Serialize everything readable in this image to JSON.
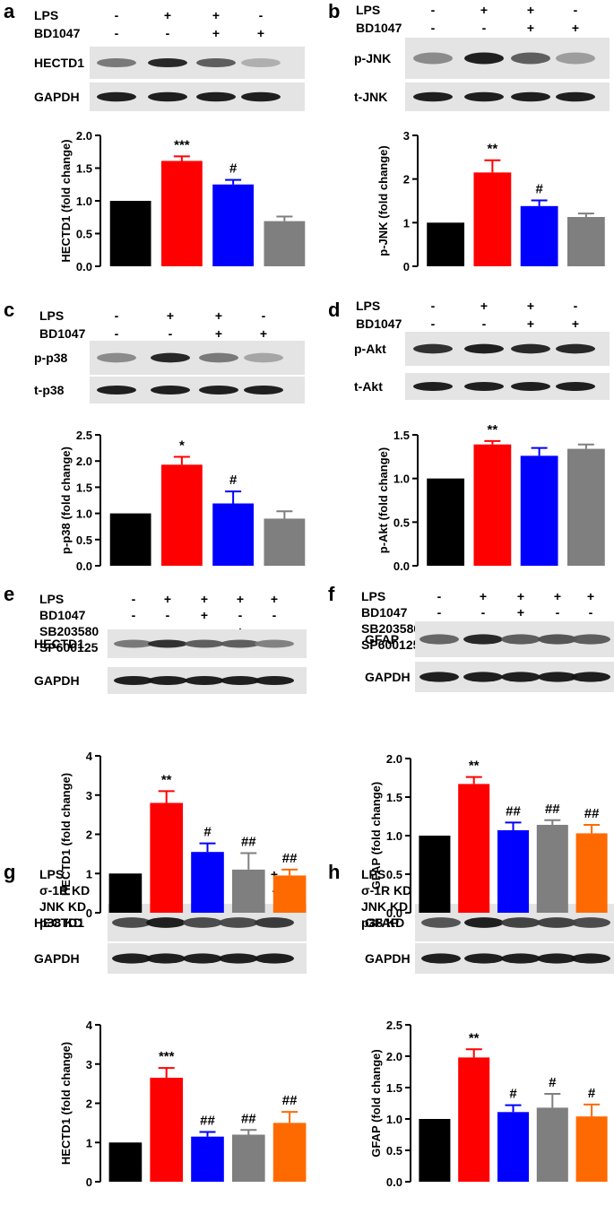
{
  "colors": {
    "black": "#000000",
    "red": "#ff0000",
    "blue": "#0000ff",
    "gray": "#7f7f7f",
    "orange": "#ff6a00"
  },
  "panels": [
    {
      "label": "a",
      "conditions": [
        {
          "name": "LPS",
          "signs": [
            "-",
            "+",
            "+",
            "-"
          ]
        },
        {
          "name": "BD1047",
          "signs": [
            "-",
            "-",
            "+",
            "+"
          ]
        }
      ],
      "blots": [
        {
          "label": "HECTD1",
          "intensities": [
            0.45,
            0.9,
            0.6,
            0.15
          ]
        },
        {
          "label": "GAPDH",
          "intensities": [
            0.95,
            0.95,
            0.95,
            0.95
          ]
        }
      ]
    },
    {
      "label": "b",
      "conditions": [
        {
          "name": "LPS",
          "signs": [
            "-",
            "+",
            "+",
            "-"
          ]
        },
        {
          "name": "BD1047",
          "signs": [
            "-",
            "-",
            "+",
            "+"
          ]
        }
      ],
      "blots": [
        {
          "label": "p-JNK",
          "intensities": [
            0.35,
            0.95,
            0.6,
            0.25
          ]
        },
        {
          "label": "t-JNK",
          "intensities": [
            0.95,
            0.95,
            0.95,
            0.95
          ]
        }
      ]
    },
    {
      "label": "c",
      "conditions": [
        {
          "name": "LPS",
          "signs": [
            "-",
            "+",
            "+",
            "-"
          ]
        },
        {
          "name": "BD1047",
          "signs": [
            "-",
            "-",
            "+",
            "+"
          ]
        }
      ],
      "blots": [
        {
          "label": "p-p38",
          "intensities": [
            0.35,
            0.9,
            0.45,
            0.2
          ]
        },
        {
          "label": "t-p38",
          "intensities": [
            0.95,
            0.95,
            0.95,
            0.95
          ]
        }
      ]
    },
    {
      "label": "d",
      "conditions": [
        {
          "name": "LPS",
          "signs": [
            "-",
            "+",
            "+",
            "-"
          ]
        },
        {
          "name": "BD1047",
          "signs": [
            "-",
            "-",
            "+",
            "+"
          ]
        }
      ],
      "blots": [
        {
          "label": "p-Akt",
          "intensities": [
            0.85,
            0.95,
            0.9,
            0.9
          ]
        },
        {
          "label": "t-Akt",
          "intensities": [
            0.95,
            0.95,
            0.95,
            0.95
          ]
        }
      ]
    },
    {
      "label": "e",
      "conditions": [
        {
          "name": "LPS",
          "signs": [
            "-",
            "+",
            "+",
            "+",
            "+"
          ]
        },
        {
          "name": "BD1047",
          "signs": [
            "-",
            "-",
            "+",
            "-",
            "-"
          ]
        },
        {
          "name": "SB203580",
          "signs": [
            "-",
            "-",
            "-",
            "+",
            "-"
          ]
        },
        {
          "name": "SP600125",
          "signs": [
            "-",
            "-",
            "-",
            "-",
            "+"
          ]
        }
      ],
      "blots": [
        {
          "label": "HECTD1",
          "intensities": [
            0.45,
            0.85,
            0.6,
            0.6,
            0.4
          ]
        },
        {
          "label": "GAPDH",
          "intensities": [
            0.95,
            0.95,
            0.95,
            0.95,
            0.95
          ]
        }
      ]
    },
    {
      "label": "f",
      "conditions": [
        {
          "name": "LPS",
          "signs": [
            "-",
            "+",
            "+",
            "+",
            "+"
          ]
        },
        {
          "name": "BD1047",
          "signs": [
            "-",
            "-",
            "+",
            "-",
            "-"
          ]
        },
        {
          "name": "SB203580",
          "signs": [
            "-",
            "-",
            "-",
            "+",
            "-"
          ]
        },
        {
          "name": "SP600125",
          "signs": [
            "-",
            "-",
            "-",
            "-",
            "+"
          ]
        }
      ],
      "blots": [
        {
          "label": "GFAP",
          "intensities": [
            0.55,
            0.9,
            0.6,
            0.65,
            0.6
          ]
        },
        {
          "label": "GAPDH",
          "intensities": [
            0.95,
            0.95,
            0.95,
            0.95,
            0.95
          ]
        }
      ]
    },
    {
      "label": "g",
      "conditions": [
        {
          "name": "LPS",
          "signs": [
            "-",
            "+",
            "+",
            "+",
            "+"
          ]
        },
        {
          "name": "σ-1R KD",
          "signs": [
            "-",
            "-",
            "+",
            "-",
            "-"
          ]
        },
        {
          "name": "JNK KD",
          "signs": [
            "-",
            "-",
            "-",
            "+",
            "-"
          ]
        },
        {
          "name": "p38 KD",
          "signs": [
            "-",
            "-",
            "-",
            "-",
            "+"
          ]
        }
      ],
      "blots": [
        {
          "label": "HECTD1",
          "intensities": [
            0.7,
            0.95,
            0.7,
            0.7,
            0.8
          ]
        },
        {
          "label": "GAPDH",
          "intensities": [
            0.95,
            0.95,
            0.95,
            0.95,
            0.95
          ]
        }
      ]
    },
    {
      "label": "h",
      "conditions": [
        {
          "name": "LPS",
          "signs": [
            "-",
            "+",
            "+",
            "+",
            "+"
          ]
        },
        {
          "name": "σ-1R KD",
          "signs": [
            "-",
            "-",
            "+",
            "-",
            "-"
          ]
        },
        {
          "name": "JNK KD",
          "signs": [
            "-",
            "-",
            "-",
            "+",
            "-"
          ]
        },
        {
          "name": "p38 KD",
          "signs": [
            "-",
            "-",
            "-",
            "-",
            "+"
          ]
        }
      ],
      "blots": [
        {
          "label": "GFAP",
          "intensities": [
            0.65,
            0.95,
            0.75,
            0.75,
            0.7
          ]
        },
        {
          "label": "GAPDH",
          "intensities": [
            0.95,
            0.95,
            0.95,
            0.95,
            0.95
          ]
        }
      ]
    }
  ],
  "chart_data": [
    {
      "panel": "a",
      "type": "bar",
      "ylabel": "HECTD1 (fold change)",
      "ylim": [
        0,
        2.0
      ],
      "yticks": [
        "0.0",
        "0.5",
        "1.0",
        "1.5",
        "2.0"
      ],
      "tick_values": [
        0,
        0.5,
        1.0,
        1.5,
        2.0
      ],
      "values": [
        1.0,
        1.61,
        1.25,
        0.69
      ],
      "errors": [
        0,
        0.07,
        0.07,
        0.07
      ],
      "significance": [
        "",
        "***",
        "#",
        ""
      ],
      "bar_colors": [
        "black",
        "red",
        "blue",
        "gray"
      ]
    },
    {
      "panel": "b",
      "type": "bar",
      "ylabel": "p-JNK (fold change)",
      "ylim": [
        0,
        3
      ],
      "yticks": [
        "0",
        "1",
        "2",
        "3"
      ],
      "tick_values": [
        0,
        1,
        2,
        3
      ],
      "values": [
        1.0,
        2.15,
        1.38,
        1.13
      ],
      "errors": [
        0,
        0.28,
        0.13,
        0.08
      ],
      "significance": [
        "",
        "**",
        "#",
        ""
      ],
      "bar_colors": [
        "black",
        "red",
        "blue",
        "gray"
      ]
    },
    {
      "panel": "c",
      "type": "bar",
      "ylabel": "p-p38 (fold change)",
      "ylim": [
        0,
        2.5
      ],
      "yticks": [
        "0.0",
        "0.5",
        "1.0",
        "1.5",
        "2.0",
        "2.5"
      ],
      "tick_values": [
        0,
        0.5,
        1.0,
        1.5,
        2.0,
        2.5
      ],
      "values": [
        1.0,
        1.93,
        1.19,
        0.9
      ],
      "errors": [
        0,
        0.15,
        0.23,
        0.14
      ],
      "significance": [
        "",
        "*",
        "#",
        ""
      ],
      "bar_colors": [
        "black",
        "red",
        "blue",
        "gray"
      ]
    },
    {
      "panel": "d",
      "type": "bar",
      "ylabel": "p-Akt (fold change)",
      "ylim": [
        0,
        1.5
      ],
      "yticks": [
        "0.0",
        "0.5",
        "1.0",
        "1.5"
      ],
      "tick_values": [
        0,
        0.5,
        1.0,
        1.5
      ],
      "values": [
        1.0,
        1.39,
        1.26,
        1.34
      ],
      "errors": [
        0,
        0.04,
        0.09,
        0.05
      ],
      "significance": [
        "",
        "**",
        "",
        ""
      ],
      "bar_colors": [
        "black",
        "red",
        "blue",
        "gray"
      ]
    },
    {
      "panel": "e",
      "type": "bar",
      "ylabel": "HECTD1 (fold change)",
      "ylim": [
        0,
        4
      ],
      "yticks": [
        "0",
        "1",
        "2",
        "3",
        "4"
      ],
      "tick_values": [
        0,
        1,
        2,
        3,
        4
      ],
      "values": [
        1.0,
        2.8,
        1.55,
        1.1,
        0.95
      ],
      "errors": [
        0,
        0.3,
        0.22,
        0.42,
        0.15
      ],
      "significance": [
        "",
        "**",
        "#",
        "##",
        "##"
      ],
      "bar_colors": [
        "black",
        "red",
        "blue",
        "gray",
        "orange"
      ]
    },
    {
      "panel": "f",
      "type": "bar",
      "ylabel": "GFAP (fold change)",
      "ylim": [
        0,
        2.0
      ],
      "yticks": [
        "0.0",
        "0.5",
        "1.0",
        "1.5",
        "2.0"
      ],
      "tick_values": [
        0,
        0.5,
        1.0,
        1.5,
        2.0
      ],
      "values": [
        1.0,
        1.67,
        1.07,
        1.14,
        1.03
      ],
      "errors": [
        0,
        0.09,
        0.1,
        0.06,
        0.11
      ],
      "significance": [
        "",
        "**",
        "##",
        "##",
        "##"
      ],
      "bar_colors": [
        "black",
        "red",
        "blue",
        "gray",
        "orange"
      ]
    },
    {
      "panel": "g",
      "type": "bar",
      "ylabel": "HECTD1 (fold change)",
      "ylim": [
        0,
        4
      ],
      "yticks": [
        "0",
        "1",
        "2",
        "3",
        "4"
      ],
      "tick_values": [
        0,
        1,
        2,
        3,
        4
      ],
      "values": [
        1.0,
        2.65,
        1.15,
        1.2,
        1.5
      ],
      "errors": [
        0,
        0.25,
        0.12,
        0.12,
        0.28
      ],
      "significance": [
        "",
        "***",
        "##",
        "##",
        "##"
      ],
      "bar_colors": [
        "black",
        "red",
        "blue",
        "gray",
        "orange"
      ]
    },
    {
      "panel": "h",
      "type": "bar",
      "ylabel": "GFAP (fold change)",
      "ylim": [
        0,
        2.5
      ],
      "yticks": [
        "0.0",
        "0.5",
        "1.0",
        "1.5",
        "2.0",
        "2.5"
      ],
      "tick_values": [
        0,
        0.5,
        1.0,
        1.5,
        2.0,
        2.5
      ],
      "values": [
        1.0,
        1.98,
        1.11,
        1.18,
        1.04
      ],
      "errors": [
        0,
        0.13,
        0.11,
        0.22,
        0.19
      ],
      "significance": [
        "",
        "**",
        "#",
        "#",
        "#"
      ],
      "bar_colors": [
        "black",
        "red",
        "blue",
        "gray",
        "orange"
      ]
    }
  ]
}
